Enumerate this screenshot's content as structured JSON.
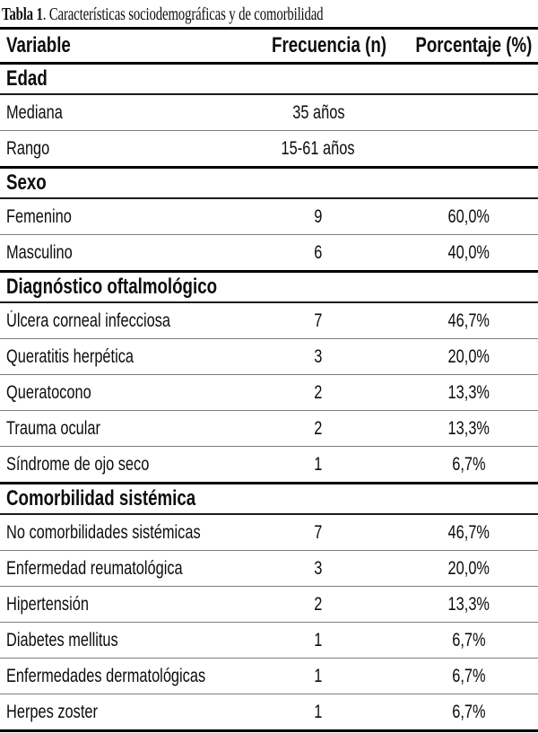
{
  "table": {
    "title_bold": "Tabla 1",
    "title_rest": ". Características sociodemográficas y de comorbilidad",
    "columns": [
      "Variable",
      "Frecuencia (n)",
      "Porcentaje (%)"
    ],
    "sections": [
      {
        "header": "Edad",
        "rows": [
          {
            "variable": "Mediana",
            "frecuencia": "35 años",
            "porcentaje": ""
          },
          {
            "variable": "Rango",
            "frecuencia": "15-61 años",
            "porcentaje": ""
          }
        ]
      },
      {
        "header": "Sexo",
        "rows": [
          {
            "variable": "Femenino",
            "frecuencia": "9",
            "porcentaje": "60,0%"
          },
          {
            "variable": "Masculino",
            "frecuencia": "6",
            "porcentaje": "40,0%"
          }
        ]
      },
      {
        "header": "Diagnóstico oftalmológico",
        "rows": [
          {
            "variable": "Úlcera corneal infecciosa",
            "frecuencia": "7",
            "porcentaje": "46,7%"
          },
          {
            "variable": "Queratitis herpética",
            "frecuencia": "3",
            "porcentaje": "20,0%"
          },
          {
            "variable": "Queratocono",
            "frecuencia": "2",
            "porcentaje": "13,3%"
          },
          {
            "variable": "Trauma ocular",
            "frecuencia": "2",
            "porcentaje": "13,3%"
          },
          {
            "variable": "Síndrome de ojo seco",
            "frecuencia": "1",
            "porcentaje": "6,7%"
          }
        ]
      },
      {
        "header": "Comorbilidad sistémica",
        "rows": [
          {
            "variable": "No comorbilidades sistémicas",
            "frecuencia": "7",
            "porcentaje": "46,7%"
          },
          {
            "variable": "Enfermedad reumatológica",
            "frecuencia": "3",
            "porcentaje": "20,0%"
          },
          {
            "variable": "Hipertensión",
            "frecuencia": "2",
            "porcentaje": "13,3%"
          },
          {
            "variable": "Diabetes mellitus",
            "frecuencia": "1",
            "porcentaje": "6,7%"
          },
          {
            "variable": "Enfermedades dermatológicas",
            "frecuencia": "1",
            "porcentaje": "6,7%"
          },
          {
            "variable": "Herpes zoster",
            "frecuencia": "1",
            "porcentaje": "6,7%"
          }
        ]
      }
    ]
  },
  "colors": {
    "text": "#0d0d0d",
    "background": "#ffffff",
    "rule_thick": "#000000",
    "rule_thin": "#7d7d7d"
  }
}
